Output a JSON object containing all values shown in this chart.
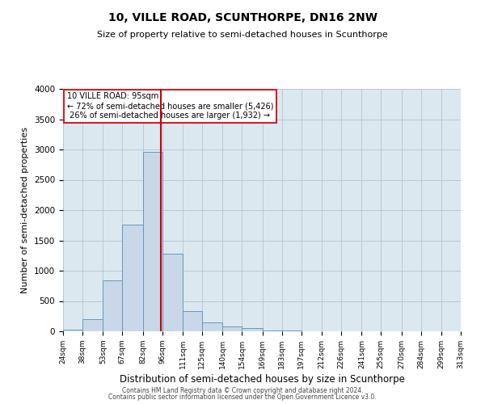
{
  "title": "10, VILLE ROAD, SCUNTHORPE, DN16 2NW",
  "subtitle": "Size of property relative to semi-detached houses in Scunthorpe",
  "xlabel": "Distribution of semi-detached houses by size in Scunthorpe",
  "ylabel": "Number of semi-detached properties",
  "bin_labels": [
    "24sqm",
    "38sqm",
    "53sqm",
    "67sqm",
    "82sqm",
    "96sqm",
    "111sqm",
    "125sqm",
    "140sqm",
    "154sqm",
    "169sqm",
    "183sqm",
    "197sqm",
    "212sqm",
    "226sqm",
    "241sqm",
    "255sqm",
    "270sqm",
    "284sqm",
    "299sqm",
    "313sqm"
  ],
  "bin_edges": [
    24,
    38,
    53,
    67,
    82,
    96,
    111,
    125,
    140,
    154,
    169,
    183,
    197,
    212,
    226,
    241,
    255,
    270,
    284,
    299,
    313
  ],
  "bin_values": [
    30,
    200,
    840,
    1760,
    2960,
    1280,
    330,
    145,
    75,
    50,
    15,
    8,
    3,
    1,
    0,
    0,
    0,
    0,
    0,
    0
  ],
  "property_size": 95,
  "pct_smaller": 72,
  "pct_larger": 26,
  "n_smaller": 5426,
  "n_larger": 1932,
  "bar_color": "#c8d8e8",
  "bar_edge_color": "#6699bb",
  "vline_color": "#cc0000",
  "annotation_box_color": "#cc2222",
  "ylim": [
    0,
    4000
  ],
  "yticks": [
    0,
    500,
    1000,
    1500,
    2000,
    2500,
    3000,
    3500,
    4000
  ],
  "grid_color": "#b0c4d0",
  "bg_color": "#dce8f0",
  "footer1": "Contains HM Land Registry data © Crown copyright and database right 2024.",
  "footer2": "Contains public sector information licensed under the Open Government Licence v3.0."
}
